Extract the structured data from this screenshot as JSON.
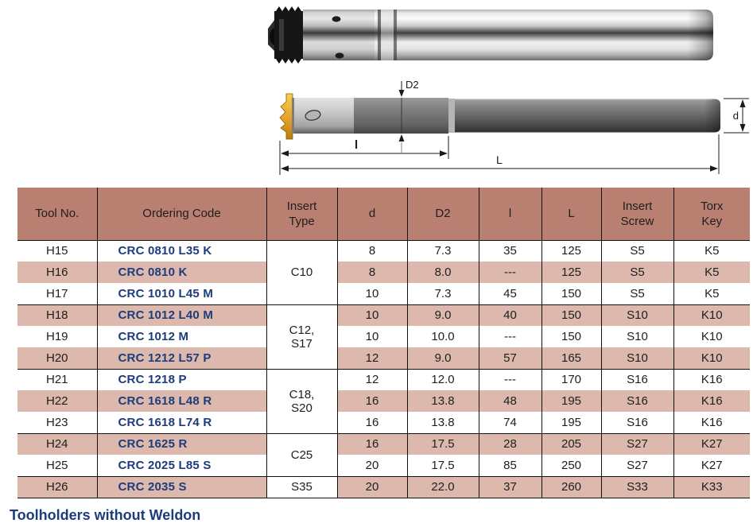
{
  "page": {
    "footer": "Toolholders without Weldon"
  },
  "colors": {
    "header_bg": "#b97f70",
    "stripe_bg": "#dcb9ac",
    "code_color": "#1c3c7c",
    "footer_color": "#1c3c7c",
    "text_color": "#1e1e1e",
    "insert_gold": "#e8a62a"
  },
  "diagram": {
    "labels": {
      "d2": "D2",
      "l": "l",
      "L": "L",
      "d": "d"
    }
  },
  "table": {
    "headers": [
      "Tool No.",
      "Ordering Code",
      "Insert\nType",
      "d",
      "D2",
      "l",
      "L",
      "Insert\nScrew",
      "Torx\nKey"
    ],
    "groups": [
      {
        "insert_type": "C10",
        "rows": [
          {
            "tool_no": "H15",
            "ordering_code": "CRC 0810 L35 K",
            "d": "8",
            "D2": "7.3",
            "l": "35",
            "L": "125",
            "insert_screw": "S5",
            "torx_key": "K5"
          },
          {
            "tool_no": "H16",
            "ordering_code": "CRC 0810 K",
            "d": "8",
            "D2": "8.0",
            "l": "---",
            "L": "125",
            "insert_screw": "S5",
            "torx_key": "K5"
          },
          {
            "tool_no": "H17",
            "ordering_code": "CRC 1010 L45 M",
            "d": "10",
            "D2": "7.3",
            "l": "45",
            "L": "150",
            "insert_screw": "S5",
            "torx_key": "K5"
          }
        ]
      },
      {
        "insert_type": "C12,\nS17",
        "rows": [
          {
            "tool_no": "H18",
            "ordering_code": "CRC 1012 L40 M",
            "d": "10",
            "D2": "9.0",
            "l": "40",
            "L": "150",
            "insert_screw": "S10",
            "torx_key": "K10"
          },
          {
            "tool_no": "H19",
            "ordering_code": "CRC 1012 M",
            "d": "10",
            "D2": "10.0",
            "l": "---",
            "L": "150",
            "insert_screw": "S10",
            "torx_key": "K10"
          },
          {
            "tool_no": "H20",
            "ordering_code": "CRC 1212 L57 P",
            "d": "12",
            "D2": "9.0",
            "l": "57",
            "L": "165",
            "insert_screw": "S10",
            "torx_key": "K10"
          }
        ]
      },
      {
        "insert_type": "C18,\nS20",
        "rows": [
          {
            "tool_no": "H21",
            "ordering_code": "CRC 1218 P",
            "d": "12",
            "D2": "12.0",
            "l": "---",
            "L": "170",
            "insert_screw": "S16",
            "torx_key": "K16"
          },
          {
            "tool_no": "H22",
            "ordering_code": "CRC 1618 L48 R",
            "d": "16",
            "D2": "13.8",
            "l": "48",
            "L": "195",
            "insert_screw": "S16",
            "torx_key": "K16"
          },
          {
            "tool_no": "H23",
            "ordering_code": "CRC 1618 L74 R",
            "d": "16",
            "D2": "13.8",
            "l": "74",
            "L": "195",
            "insert_screw": "S16",
            "torx_key": "K16"
          }
        ]
      },
      {
        "insert_type": "C25",
        "rows": [
          {
            "tool_no": "H24",
            "ordering_code": "CRC 1625 R",
            "d": "16",
            "D2": "17.5",
            "l": "28",
            "L": "205",
            "insert_screw": "S27",
            "torx_key": "K27"
          },
          {
            "tool_no": "H25",
            "ordering_code": "CRC 2025 L85 S",
            "d": "20",
            "D2": "17.5",
            "l": "85",
            "L": "250",
            "insert_screw": "S27",
            "torx_key": "K27"
          }
        ]
      },
      {
        "insert_type": "S35",
        "rows": [
          {
            "tool_no": "H26",
            "ordering_code": "CRC 2035 S",
            "d": "20",
            "D2": "22.0",
            "l": "37",
            "L": "260",
            "insert_screw": "S33",
            "torx_key": "K33"
          }
        ]
      }
    ]
  }
}
